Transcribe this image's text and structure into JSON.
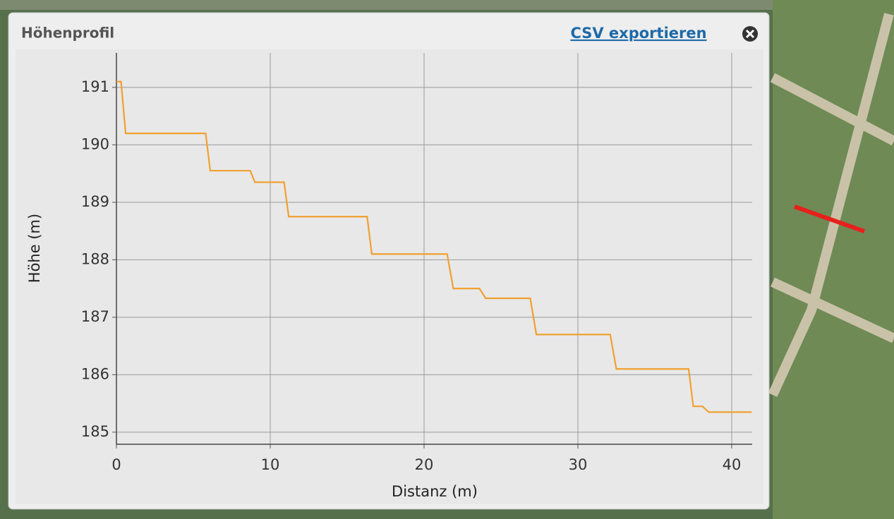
{
  "header": {
    "title": "Höhenprofil",
    "export_link": "CSV exportieren"
  },
  "chart_data": {
    "type": "line",
    "x_label": "Distanz (m)",
    "y_label": "Höhe (m)",
    "x": [
      0,
      0.3,
      0.6,
      5.8,
      6.1,
      8.7,
      9.0,
      10.9,
      11.2,
      16.3,
      16.6,
      21.5,
      21.9,
      23.6,
      24.0,
      26.9,
      27.3,
      32.1,
      32.5,
      37.2,
      37.5,
      38.1,
      38.5,
      41.3
    ],
    "values": [
      191.1,
      191.1,
      190.2,
      190.2,
      189.55,
      189.55,
      189.35,
      189.35,
      188.75,
      188.75,
      188.1,
      188.1,
      187.5,
      187.5,
      187.33,
      187.33,
      186.7,
      186.7,
      186.1,
      186.1,
      185.45,
      185.45,
      185.35,
      185.35
    ],
    "color": "#f0a030",
    "xlim": [
      0,
      41.33
    ],
    "ylim": [
      184.79,
      191.6
    ],
    "xticks": [
      0,
      10,
      20,
      30,
      40
    ],
    "yticks": [
      185,
      186,
      187,
      188,
      189,
      190,
      191
    ],
    "grid": true
  }
}
